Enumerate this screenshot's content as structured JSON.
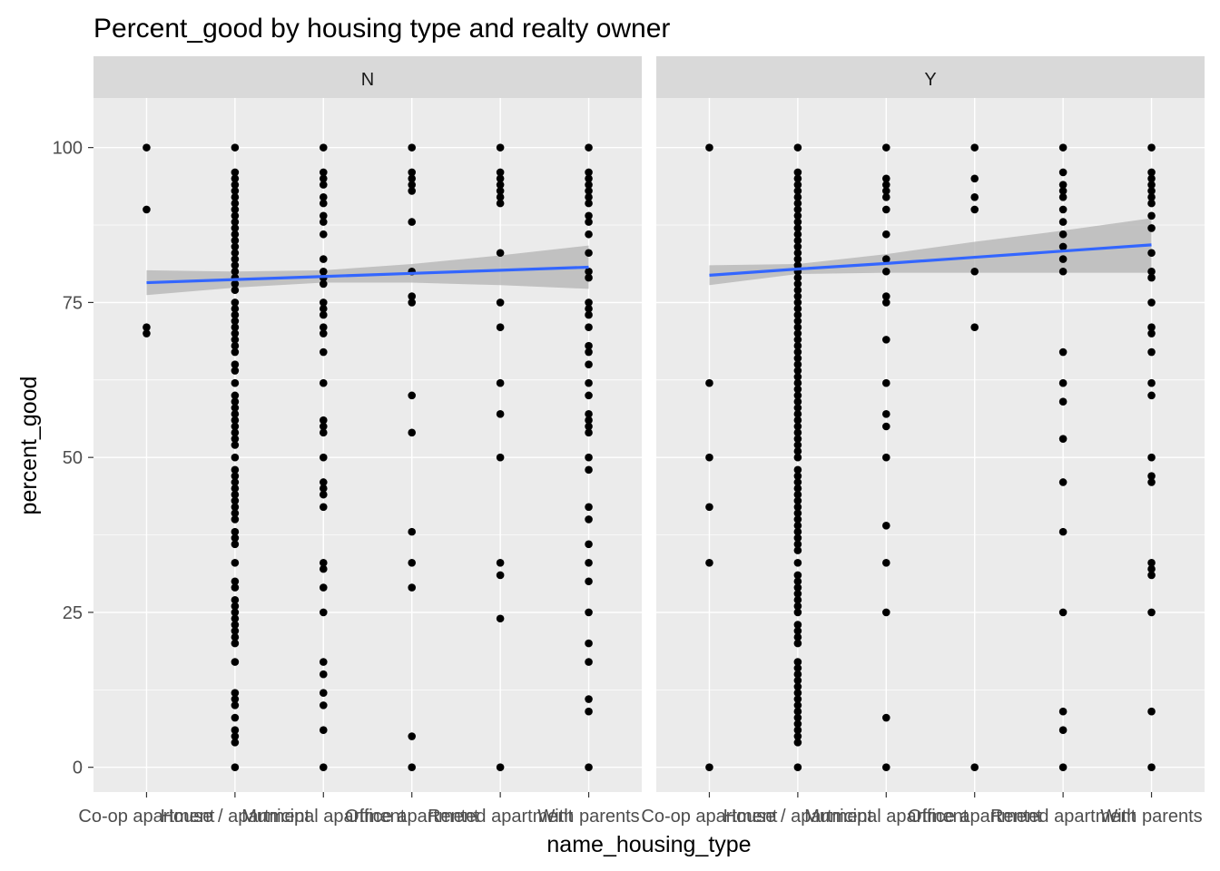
{
  "chart_data": {
    "type": "scatter",
    "title": "Percent_good by housing type and realty owner",
    "xlabel": "name_housing_type",
    "ylabel": "percent_good",
    "ylim": [
      -4,
      108
    ],
    "yticks": [
      0,
      25,
      50,
      75,
      100
    ],
    "categories": [
      "Co-op apartment",
      "House / apartment",
      "Municipal apartment",
      "Office apartment",
      "Rented apartment",
      "With parents"
    ],
    "grid": true,
    "colors": {
      "panel_bg": "#ebebeb",
      "strip_bg": "#d9d9d9",
      "grid": "#ffffff",
      "points": "#000000",
      "smooth_line": "#3366ff",
      "confidence_band": "#b3b3b3"
    },
    "facets": [
      {
        "label": "N",
        "points": [
          {
            "x": "Co-op apartment",
            "y": [
              100,
              90,
              71,
              70
            ]
          },
          {
            "x": "House / apartment",
            "y": [
              100,
              96,
              95,
              94,
              93,
              92,
              91,
              90,
              89,
              88,
              87,
              86,
              85,
              84,
              83,
              82,
              81,
              80,
              79,
              78,
              77,
              75,
              74,
              73,
              72,
              71,
              70,
              69,
              68,
              67,
              65,
              64,
              62,
              60,
              59,
              58,
              57,
              56,
              55,
              54,
              53,
              52,
              50,
              48,
              47,
              46,
              45,
              44,
              43,
              42,
              41,
              40,
              38,
              37,
              36,
              33,
              30,
              29,
              27,
              26,
              25,
              24,
              23,
              22,
              21,
              20,
              17,
              12,
              11,
              10,
              8,
              6,
              5,
              4,
              0
            ]
          },
          {
            "x": "Municipal apartment",
            "y": [
              100,
              96,
              95,
              94,
              92,
              91,
              89,
              88,
              86,
              82,
              80,
              79,
              78,
              75,
              74,
              73,
              71,
              70,
              67,
              62,
              56,
              55,
              54,
              50,
              46,
              45,
              44,
              42,
              33,
              32,
              29,
              25,
              17,
              15,
              12,
              10,
              6,
              0
            ]
          },
          {
            "x": "Office apartment",
            "y": [
              100,
              96,
              95,
              94,
              93,
              88,
              80,
              76,
              75,
              60,
              54,
              38,
              33,
              29,
              5,
              0
            ]
          },
          {
            "x": "Rented apartment",
            "y": [
              100,
              96,
              95,
              94,
              93,
              92,
              91,
              83,
              75,
              71,
              62,
              57,
              50,
              33,
              31,
              24,
              0
            ]
          },
          {
            "x": "With parents",
            "y": [
              100,
              96,
              95,
              94,
              93,
              92,
              91,
              89,
              88,
              86,
              83,
              80,
              79,
              75,
              74,
              73,
              71,
              68,
              67,
              65,
              62,
              60,
              57,
              56,
              55,
              54,
              50,
              48,
              42,
              40,
              36,
              33,
              30,
              25,
              20,
              17,
              11,
              9,
              0
            ]
          }
        ],
        "smooth": {
          "y": [
            78.2,
            78.7,
            79.2,
            79.7,
            80.2,
            80.7
          ],
          "ymin": [
            76.2,
            77.4,
            78.2,
            78.2,
            77.8,
            77.2
          ],
          "ymax": [
            80.2,
            80.0,
            80.2,
            81.2,
            82.6,
            84.2
          ]
        }
      },
      {
        "label": "Y",
        "points": [
          {
            "x": "Co-op apartment",
            "y": [
              100,
              62,
              50,
              42,
              33,
              0
            ]
          },
          {
            "x": "House / apartment",
            "y": [
              100,
              96,
              95,
              94,
              93,
              92,
              91,
              90,
              89,
              88,
              87,
              86,
              85,
              84,
              83,
              82,
              81,
              80,
              79,
              78,
              77,
              76,
              75,
              74,
              73,
              72,
              71,
              70,
              69,
              68,
              67,
              66,
              65,
              64,
              63,
              62,
              61,
              60,
              59,
              58,
              57,
              56,
              55,
              54,
              53,
              52,
              51,
              50,
              48,
              47,
              46,
              45,
              44,
              43,
              42,
              41,
              40,
              39,
              38,
              37,
              36,
              35,
              33,
              31,
              30,
              29,
              28,
              27,
              26,
              25,
              23,
              22,
              21,
              20,
              17,
              16,
              15,
              14,
              13,
              12,
              11,
              10,
              9,
              8,
              7,
              6,
              5,
              4,
              0
            ]
          },
          {
            "x": "Municipal apartment",
            "y": [
              100,
              95,
              94,
              93,
              92,
              90,
              86,
              82,
              80,
              76,
              75,
              69,
              62,
              57,
              55,
              50,
              39,
              33,
              25,
              8,
              0
            ]
          },
          {
            "x": "Office apartment",
            "y": [
              100,
              95,
              92,
              90,
              80,
              71,
              0
            ]
          },
          {
            "x": "Rented apartment",
            "y": [
              100,
              96,
              94,
              93,
              92,
              90,
              88,
              86,
              84,
              82,
              80,
              67,
              62,
              59,
              53,
              46,
              38,
              25,
              9,
              6,
              0
            ]
          },
          {
            "x": "With parents",
            "y": [
              100,
              96,
              95,
              94,
              93,
              92,
              91,
              89,
              87,
              83,
              80,
              79,
              75,
              71,
              70,
              67,
              62,
              60,
              50,
              47,
              46,
              33,
              32,
              31,
              25,
              9,
              0
            ]
          }
        ],
        "smooth": {
          "y": [
            79.4,
            80.4,
            81.3,
            82.3,
            83.3,
            84.3
          ],
          "ymin": [
            77.8,
            79.6,
            79.8,
            79.8,
            79.8,
            79.8
          ],
          "ymax": [
            81.0,
            81.2,
            82.8,
            84.8,
            86.6,
            88.6
          ]
        }
      }
    ]
  }
}
